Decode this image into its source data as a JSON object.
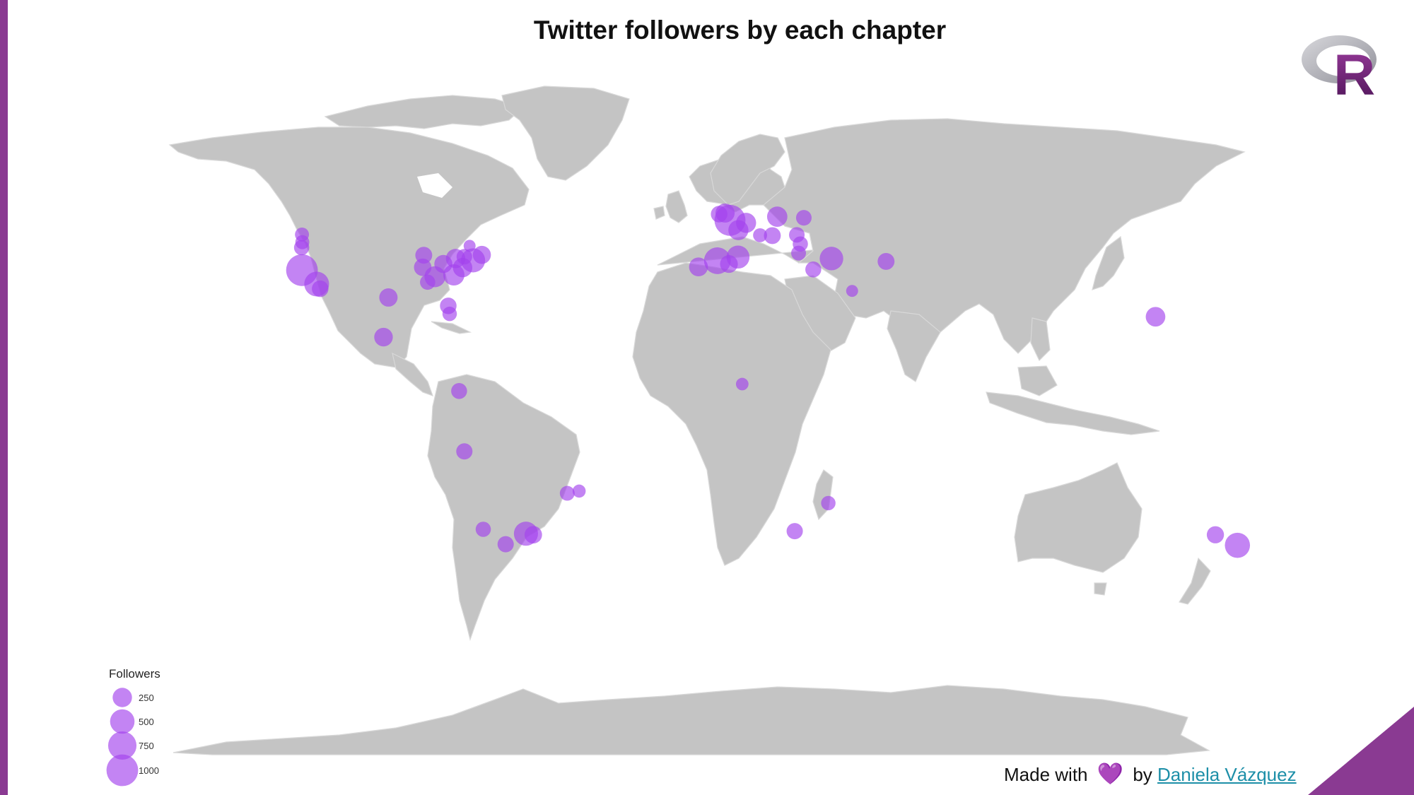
{
  "title": "Twitter followers by each chapter",
  "logo_letter": "R",
  "legend": {
    "title": "Followers",
    "sizes": [
      {
        "label": "250",
        "value": 250
      },
      {
        "label": "500",
        "value": 500
      },
      {
        "label": "750",
        "value": 750
      },
      {
        "label": "1000",
        "value": 1000
      }
    ]
  },
  "footer": {
    "made_with": "Made with",
    "by": "by",
    "author": "Daniela Vázquez"
  },
  "colors": {
    "accent": "#8a3a92",
    "bubble": "#a342ec",
    "land": "#c4c4c4",
    "link": "#1d8fa8"
  },
  "chapters": [
    {
      "lon": -122.4,
      "lat": 47.6,
      "followers": 80
    },
    {
      "lon": -122.3,
      "lat": 45.5,
      "followers": 80
    },
    {
      "lon": -122.5,
      "lat": 44.0,
      "followers": 110
    },
    {
      "lon": -122.4,
      "lat": 37.8,
      "followers": 1000
    },
    {
      "lon": -118.2,
      "lat": 34.0,
      "followers": 520
    },
    {
      "lon": -117.2,
      "lat": 32.7,
      "followers": 150
    },
    {
      "lon": -87.6,
      "lat": 41.9,
      "followers": 160
    },
    {
      "lon": -87.9,
      "lat": 38.6,
      "followers": 180
    },
    {
      "lon": -82.0,
      "lat": 39.5,
      "followers": 200
    },
    {
      "lon": -78.5,
      "lat": 41.0,
      "followers": 250
    },
    {
      "lon": -76.0,
      "lat": 41.5,
      "followers": 120
    },
    {
      "lon": -84.4,
      "lat": 36.0,
      "followers": 320
    },
    {
      "lon": -79.0,
      "lat": 36.5,
      "followers": 330
    },
    {
      "lon": -76.5,
      "lat": 38.5,
      "followers": 250
    },
    {
      "lon": -73.5,
      "lat": 40.5,
      "followers": 480
    },
    {
      "lon": -71.0,
      "lat": 42.0,
      "followers": 200
    },
    {
      "lon": -74.5,
      "lat": 44.5,
      "followers": 40
    },
    {
      "lon": -86.5,
      "lat": 34.5,
      "followers": 110
    },
    {
      "lon": -97.7,
      "lat": 30.3,
      "followers": 210
    },
    {
      "lon": -80.6,
      "lat": 28.0,
      "followers": 150
    },
    {
      "lon": -80.2,
      "lat": 25.8,
      "followers": 90
    },
    {
      "lon": -99.1,
      "lat": 19.4,
      "followers": 220
    },
    {
      "lon": -77.5,
      "lat": 4.6,
      "followers": 130
    },
    {
      "lon": -76.0,
      "lat": -12.0,
      "followers": 140
    },
    {
      "lon": -43.2,
      "lat": -22.9,
      "followers": 60
    },
    {
      "lon": -46.6,
      "lat": -23.5,
      "followers": 100
    },
    {
      "lon": -58.4,
      "lat": -34.6,
      "followers": 480
    },
    {
      "lon": -56.3,
      "lat": -34.9,
      "followers": 180
    },
    {
      "lon": -70.6,
      "lat": -33.4,
      "followers": 110
    },
    {
      "lon": -64.2,
      "lat": -37.5,
      "followers": 140
    },
    {
      "lon": -0.1,
      "lat": 51.5,
      "followers": 950
    },
    {
      "lon": -3.2,
      "lat": 53.2,
      "followers": 150
    },
    {
      "lon": -1.5,
      "lat": 53.5,
      "followers": 240
    },
    {
      "lon": 4.5,
      "lat": 50.8,
      "followers": 280
    },
    {
      "lon": 2.3,
      "lat": 48.8,
      "followers": 280
    },
    {
      "lon": 8.5,
      "lat": 47.4,
      "followers": 80
    },
    {
      "lon": 13.4,
      "lat": 52.5,
      "followers": 290
    },
    {
      "lon": 21.0,
      "lat": 52.2,
      "followers": 120
    },
    {
      "lon": 12.0,
      "lat": 47.3,
      "followers": 160
    },
    {
      "lon": 19.0,
      "lat": 47.5,
      "followers": 120
    },
    {
      "lon": 20.0,
      "lat": 45.0,
      "followers": 110
    },
    {
      "lon": 19.5,
      "lat": 42.5,
      "followers": 100
    },
    {
      "lon": -3.7,
      "lat": 40.4,
      "followers": 640
    },
    {
      "lon": -9.1,
      "lat": 38.7,
      "followers": 230
    },
    {
      "lon": 2.2,
      "lat": 41.4,
      "followers": 420
    },
    {
      "lon": -0.4,
      "lat": 39.5,
      "followers": 190
    },
    {
      "lon": 23.7,
      "lat": 38.0,
      "followers": 130
    },
    {
      "lon": 28.9,
      "lat": 41.0,
      "followers": 450
    },
    {
      "lon": 44.5,
      "lat": 40.2,
      "followers": 160
    },
    {
      "lon": 34.8,
      "lat": 32.1,
      "followers": 40
    },
    {
      "lon": 121.5,
      "lat": 25.0,
      "followers": 260
    },
    {
      "lon": 3.4,
      "lat": 6.5,
      "followers": 50
    },
    {
      "lon": 28.0,
      "lat": -26.2,
      "followers": 90
    },
    {
      "lon": 18.4,
      "lat": -33.9,
      "followers": 140
    },
    {
      "lon": 144.9,
      "lat": -37.8,
      "followers": 540
    },
    {
      "lon": 138.6,
      "lat": -34.9,
      "followers": 170
    }
  ]
}
